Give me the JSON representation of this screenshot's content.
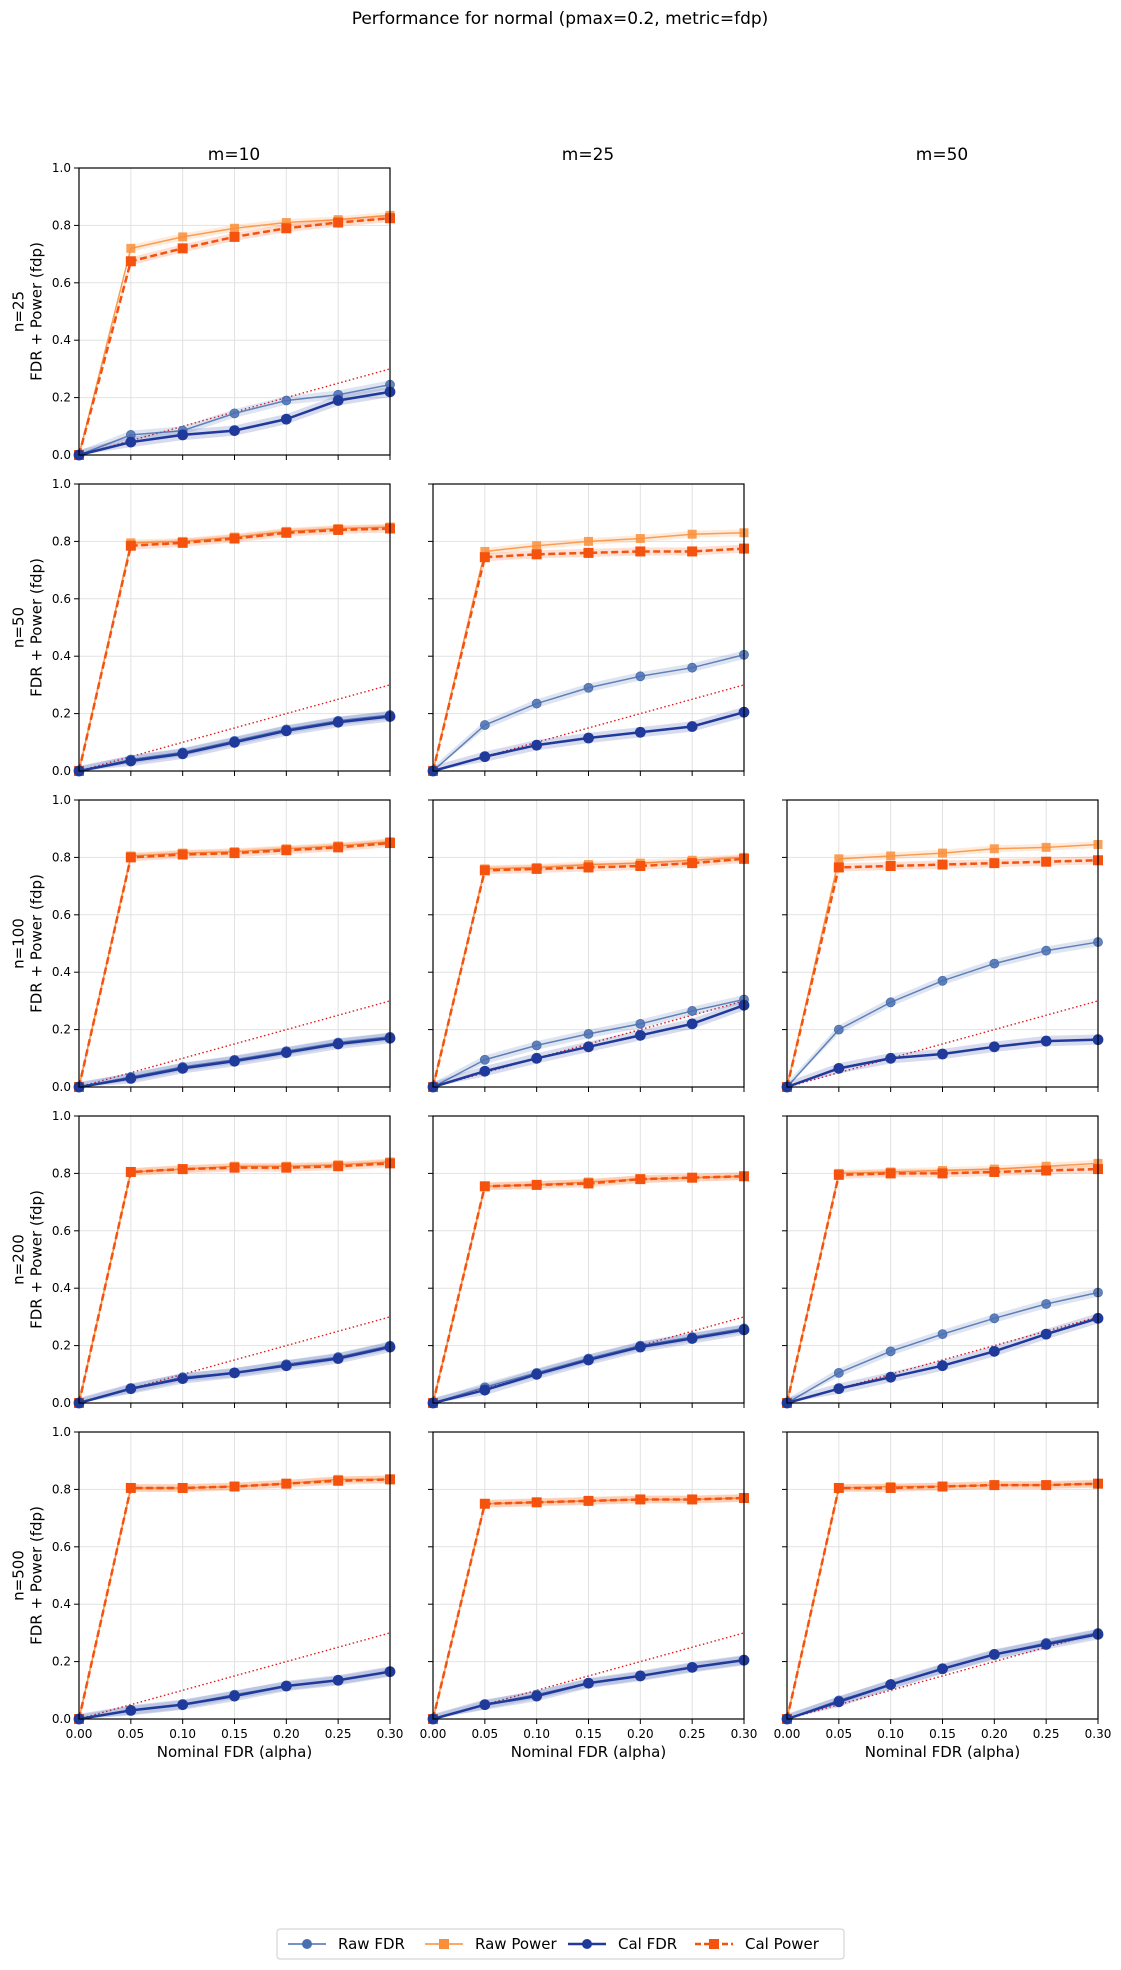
{
  "title": "Performance for normal (pmax=0.2, metric=fdp)",
  "column_titles": [
    "m=10",
    "m=25",
    "m=50"
  ],
  "row_labels": [
    "n=25",
    "n=50",
    "n=100",
    "n=200",
    "n=500"
  ],
  "ylabel": "FDR + Power (fdp)",
  "xlabel": "Nominal FDR (alpha)",
  "x_tick_labels": [
    "0.00",
    "0.05",
    "0.10",
    "0.15",
    "0.20",
    "0.25",
    "0.30"
  ],
  "y_tick_labels": [
    "0.0",
    "0.2",
    "0.4",
    "0.6",
    "0.8",
    "1.0"
  ],
  "legend": [
    "Raw FDR",
    "Raw Power",
    "Cal FDR",
    "Cal Power"
  ],
  "colors": {
    "raw_fdr": "#4a6fb0",
    "raw_power": "#f98f3b",
    "cal_fdr": "#1f3a9b",
    "cal_power": "#f4520d",
    "reference": "#e31a1c",
    "grid": "#e2e2e2"
  },
  "chart_data": {
    "type": "line",
    "xlim": [
      0,
      0.3
    ],
    "ylim": [
      0,
      1
    ],
    "grid": true,
    "legend_position": "bottom-center",
    "reference_line": {
      "x": [
        0,
        0.3
      ],
      "y": [
        0,
        0.3
      ],
      "style": "dotted"
    },
    "x": [
      0,
      0.05,
      0.1,
      0.15,
      0.2,
      0.25,
      0.3
    ],
    "panels": [
      {
        "row": 0,
        "col": 0,
        "n": 25,
        "m": 10,
        "series": {
          "raw_fdr": [
            0,
            0.07,
            0.085,
            0.145,
            0.19,
            0.21,
            0.245
          ],
          "raw_power": [
            0,
            0.72,
            0.76,
            0.79,
            0.81,
            0.82,
            0.835
          ],
          "cal_fdr": [
            0,
            0.045,
            0.07,
            0.085,
            0.125,
            0.19,
            0.22
          ],
          "cal_power": [
            0,
            0.675,
            0.72,
            0.76,
            0.79,
            0.81,
            0.825
          ]
        }
      },
      {
        "row": 1,
        "col": 0,
        "n": 50,
        "m": 10,
        "series": {
          "raw_fdr": [
            0,
            0.04,
            0.065,
            0.105,
            0.145,
            0.175,
            0.195
          ],
          "raw_power": [
            0,
            0.795,
            0.8,
            0.815,
            0.835,
            0.845,
            0.85
          ],
          "cal_fdr": [
            0,
            0.035,
            0.06,
            0.1,
            0.14,
            0.17,
            0.19
          ],
          "cal_power": [
            0,
            0.785,
            0.795,
            0.81,
            0.83,
            0.84,
            0.845
          ]
        }
      },
      {
        "row": 1,
        "col": 1,
        "n": 50,
        "m": 25,
        "series": {
          "raw_fdr": [
            0,
            0.16,
            0.235,
            0.29,
            0.33,
            0.36,
            0.405
          ],
          "raw_power": [
            0,
            0.765,
            0.785,
            0.8,
            0.81,
            0.825,
            0.83
          ],
          "cal_fdr": [
            0,
            0.05,
            0.09,
            0.115,
            0.135,
            0.155,
            0.205
          ],
          "cal_power": [
            0,
            0.745,
            0.755,
            0.76,
            0.765,
            0.765,
            0.775
          ]
        }
      },
      {
        "row": 2,
        "col": 0,
        "n": 100,
        "m": 10,
        "series": {
          "raw_fdr": [
            0,
            0.035,
            0.07,
            0.095,
            0.125,
            0.155,
            0.175
          ],
          "raw_power": [
            0,
            0.805,
            0.815,
            0.82,
            0.83,
            0.84,
            0.855
          ],
          "cal_fdr": [
            0,
            0.03,
            0.065,
            0.09,
            0.12,
            0.15,
            0.17
          ],
          "cal_power": [
            0,
            0.8,
            0.81,
            0.815,
            0.825,
            0.835,
            0.85
          ]
        }
      },
      {
        "row": 2,
        "col": 1,
        "n": 100,
        "m": 25,
        "series": {
          "raw_fdr": [
            0,
            0.095,
            0.145,
            0.185,
            0.22,
            0.265,
            0.305
          ],
          "raw_power": [
            0,
            0.76,
            0.765,
            0.775,
            0.78,
            0.79,
            0.8
          ],
          "cal_fdr": [
            0,
            0.055,
            0.1,
            0.14,
            0.18,
            0.22,
            0.285
          ],
          "cal_power": [
            0,
            0.755,
            0.76,
            0.765,
            0.77,
            0.78,
            0.795
          ]
        }
      },
      {
        "row": 2,
        "col": 2,
        "n": 100,
        "m": 50,
        "series": {
          "raw_fdr": [
            0,
            0.2,
            0.295,
            0.37,
            0.43,
            0.475,
            0.505
          ],
          "raw_power": [
            0,
            0.795,
            0.805,
            0.815,
            0.83,
            0.835,
            0.845
          ],
          "cal_fdr": [
            0,
            0.065,
            0.1,
            0.115,
            0.14,
            0.16,
            0.165
          ],
          "cal_power": [
            0,
            0.765,
            0.77,
            0.775,
            0.78,
            0.785,
            0.79
          ]
        }
      },
      {
        "row": 3,
        "col": 0,
        "n": 200,
        "m": 10,
        "series": {
          "raw_fdr": [
            0,
            0.05,
            0.09,
            0.105,
            0.135,
            0.16,
            0.2
          ],
          "raw_power": [
            0,
            0.805,
            0.815,
            0.825,
            0.825,
            0.83,
            0.84
          ],
          "cal_fdr": [
            0,
            0.05,
            0.085,
            0.105,
            0.13,
            0.155,
            0.195
          ],
          "cal_power": [
            0,
            0.805,
            0.815,
            0.82,
            0.82,
            0.825,
            0.835
          ]
        }
      },
      {
        "row": 3,
        "col": 1,
        "n": 200,
        "m": 25,
        "series": {
          "raw_fdr": [
            0,
            0.055,
            0.105,
            0.155,
            0.2,
            0.23,
            0.26
          ],
          "raw_power": [
            0,
            0.755,
            0.76,
            0.77,
            0.78,
            0.785,
            0.79
          ],
          "cal_fdr": [
            0,
            0.045,
            0.1,
            0.15,
            0.195,
            0.225,
            0.255
          ],
          "cal_power": [
            0,
            0.755,
            0.76,
            0.765,
            0.78,
            0.785,
            0.79
          ]
        }
      },
      {
        "row": 3,
        "col": 2,
        "n": 200,
        "m": 50,
        "series": {
          "raw_fdr": [
            0,
            0.105,
            0.18,
            0.24,
            0.295,
            0.345,
            0.385
          ],
          "raw_power": [
            0,
            0.8,
            0.805,
            0.81,
            0.815,
            0.825,
            0.835
          ],
          "cal_fdr": [
            0,
            0.05,
            0.09,
            0.13,
            0.18,
            0.24,
            0.295
          ],
          "cal_power": [
            0,
            0.795,
            0.8,
            0.8,
            0.805,
            0.81,
            0.815
          ]
        }
      },
      {
        "row": 4,
        "col": 0,
        "n": 500,
        "m": 10,
        "series": {
          "raw_fdr": [
            0,
            0.03,
            0.05,
            0.085,
            0.115,
            0.135,
            0.165
          ],
          "raw_power": [
            0,
            0.805,
            0.805,
            0.81,
            0.82,
            0.835,
            0.835
          ],
          "cal_fdr": [
            0,
            0.03,
            0.05,
            0.08,
            0.115,
            0.135,
            0.165
          ],
          "cal_power": [
            0,
            0.805,
            0.805,
            0.81,
            0.82,
            0.83,
            0.835
          ]
        }
      },
      {
        "row": 4,
        "col": 1,
        "n": 500,
        "m": 25,
        "series": {
          "raw_fdr": [
            0,
            0.05,
            0.085,
            0.125,
            0.15,
            0.18,
            0.205
          ],
          "raw_power": [
            0,
            0.75,
            0.755,
            0.76,
            0.765,
            0.765,
            0.77
          ],
          "cal_fdr": [
            0,
            0.05,
            0.08,
            0.125,
            0.15,
            0.18,
            0.205
          ],
          "cal_power": [
            0,
            0.75,
            0.755,
            0.76,
            0.765,
            0.765,
            0.77
          ]
        }
      },
      {
        "row": 4,
        "col": 2,
        "n": 500,
        "m": 50,
        "series": {
          "raw_fdr": [
            0,
            0.065,
            0.12,
            0.175,
            0.225,
            0.265,
            0.3
          ],
          "raw_power": [
            0,
            0.805,
            0.81,
            0.81,
            0.815,
            0.815,
            0.82
          ],
          "cal_fdr": [
            0,
            0.06,
            0.12,
            0.175,
            0.225,
            0.26,
            0.295
          ],
          "cal_power": [
            0,
            0.805,
            0.805,
            0.81,
            0.815,
            0.815,
            0.82
          ]
        }
      }
    ]
  }
}
